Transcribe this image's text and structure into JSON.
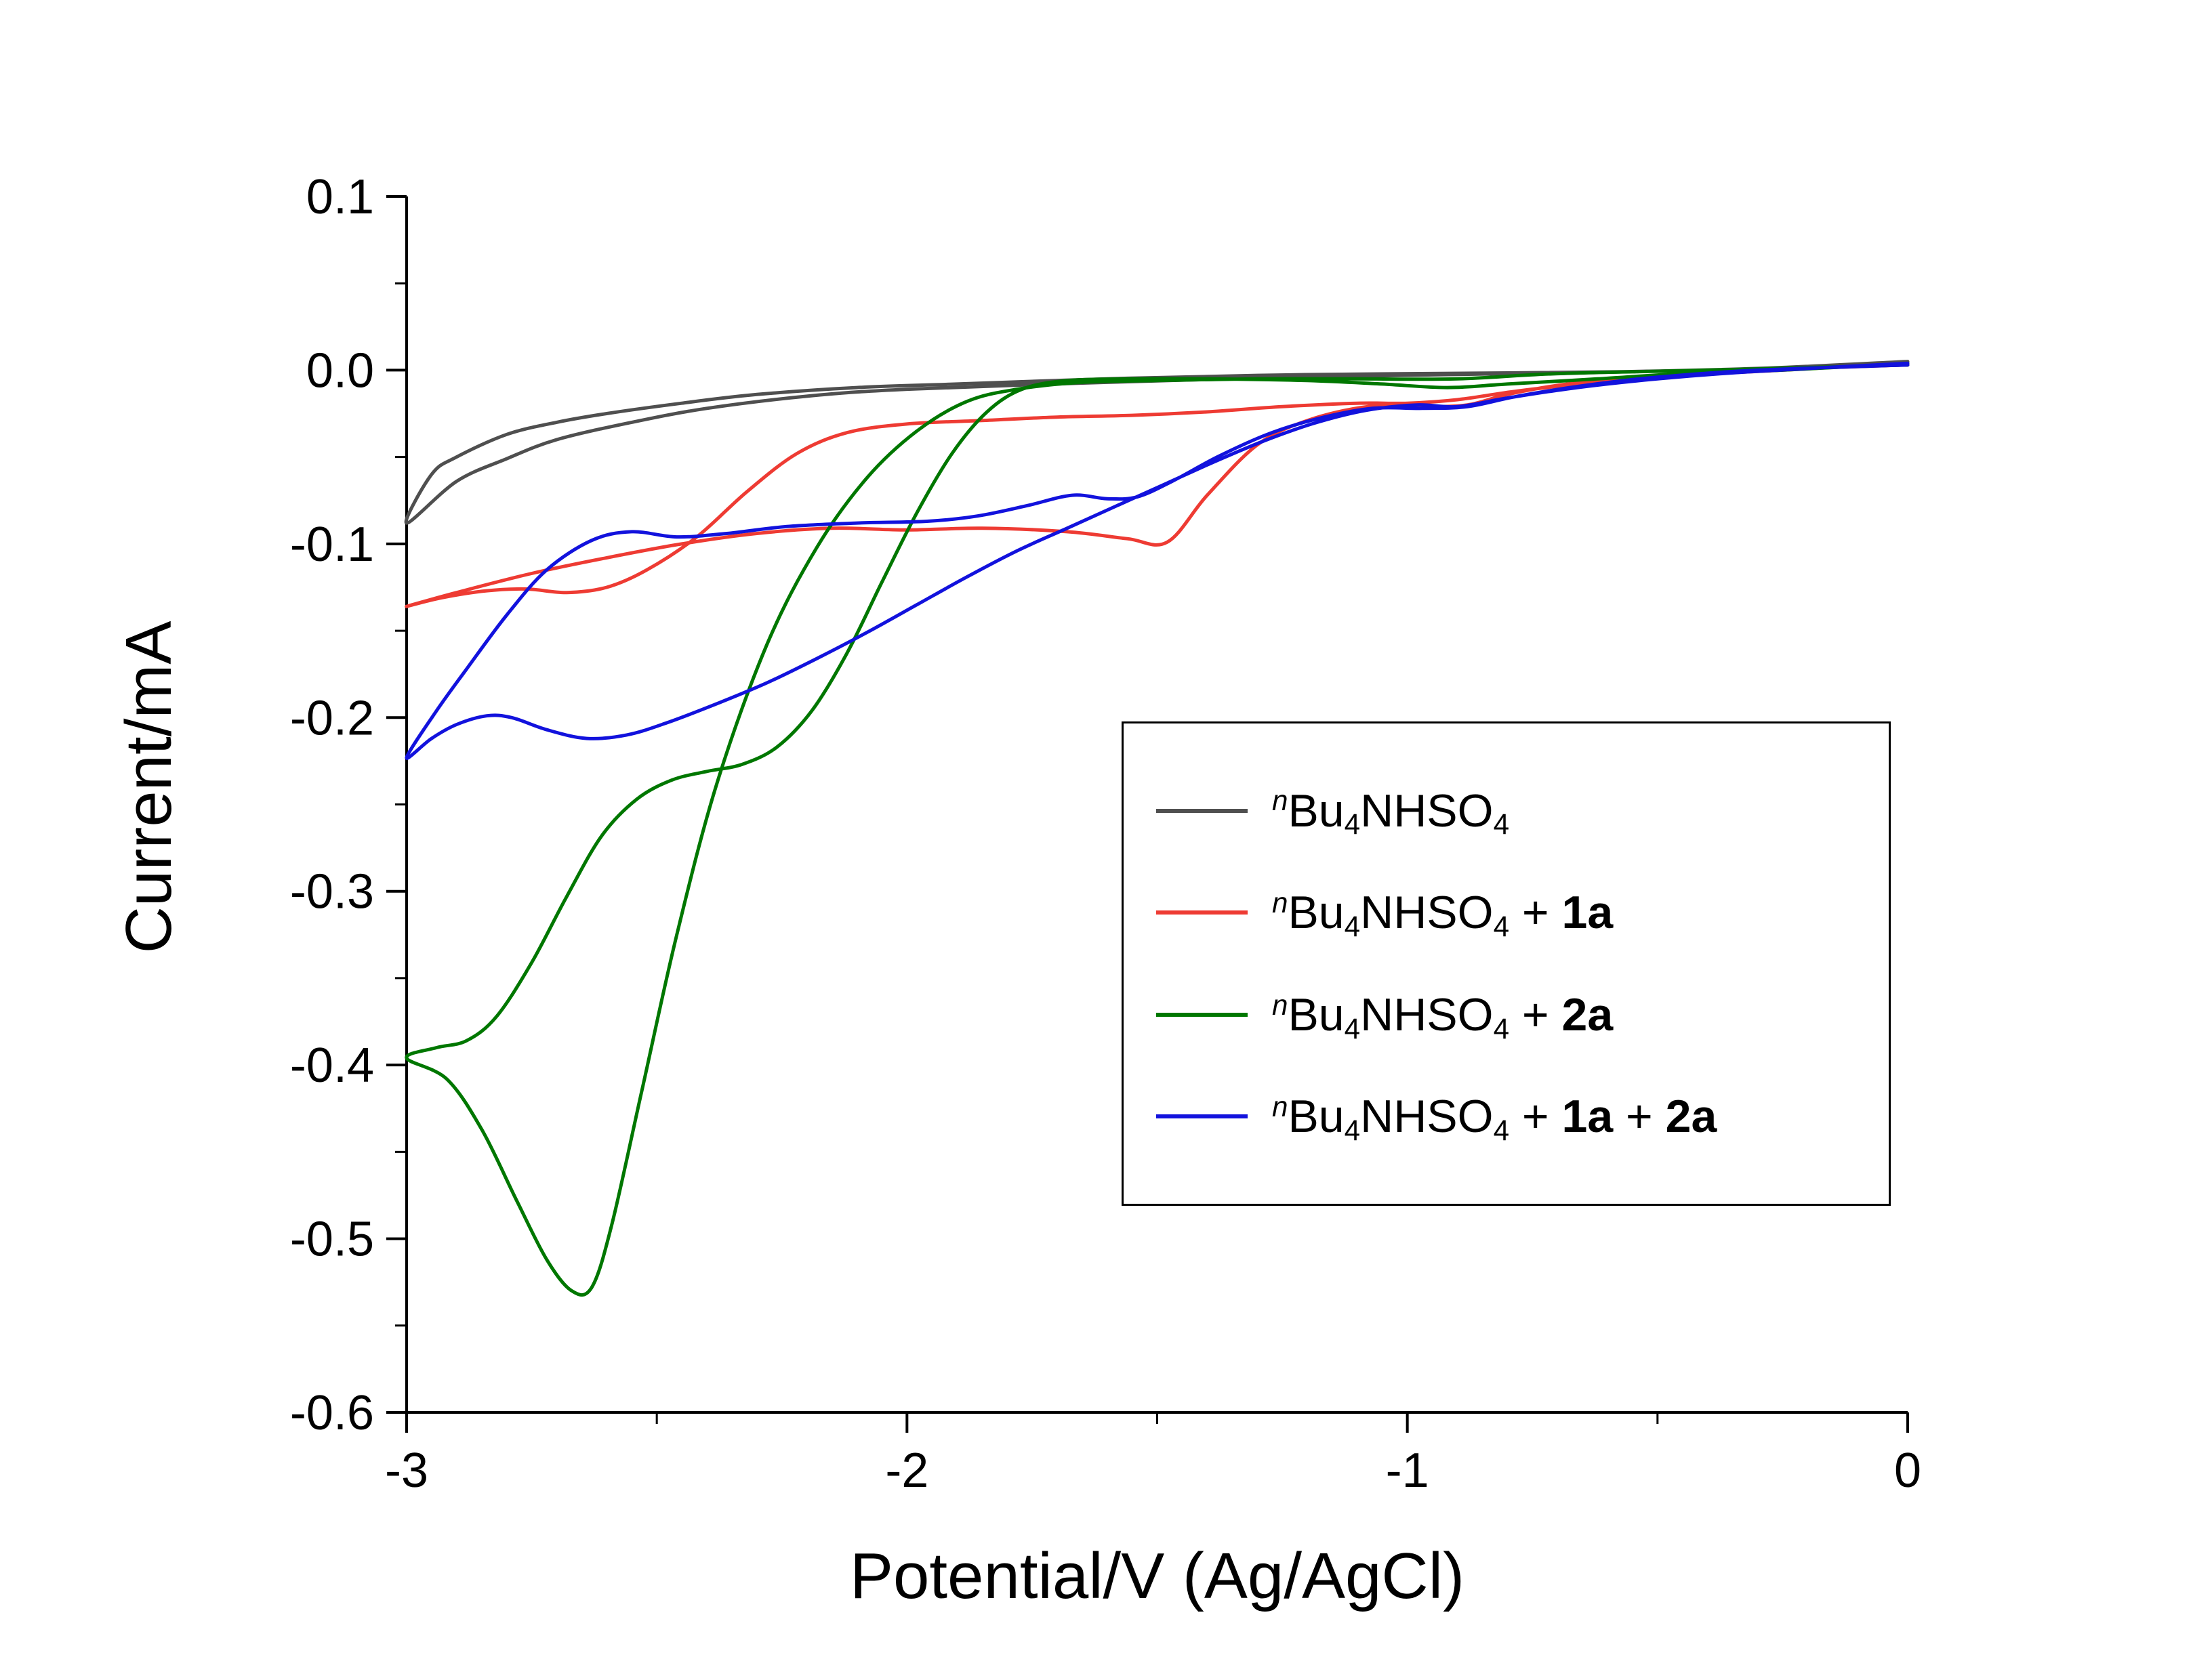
{
  "chart_data": {
    "type": "line",
    "title": "",
    "xlabel": "Potential/V (Ag/AgCl)",
    "ylabel": "Current/mA",
    "xlim": [
      -3,
      0
    ],
    "ylim": [
      -0.6,
      0.1
    ],
    "grid": false,
    "legend_position": "right-center",
    "x_major_ticks": [
      -3,
      -2,
      -1,
      0
    ],
    "x_tick_labels": [
      "-3",
      "-2",
      "-1",
      "0"
    ],
    "x_minor_ticks": [
      -2.5,
      -1.5,
      -0.5
    ],
    "y_major_ticks": [
      0.1,
      0.0,
      -0.1,
      -0.2,
      -0.3,
      -0.4,
      -0.5,
      -0.6
    ],
    "y_tick_labels": [
      "0.1",
      "0.0",
      "-0.1",
      "-0.2",
      "-0.3",
      "-0.4",
      "-0.5",
      "-0.6"
    ],
    "y_minor_ticks": [
      0.05,
      -0.05,
      -0.15,
      -0.25,
      -0.35,
      -0.45,
      -0.55
    ],
    "series": [
      {
        "id": "blank",
        "name": "nBu4NHSO4",
        "color": "#4f4f4f",
        "points": [
          [
            0,
            0.003
          ],
          [
            -0.4,
            0.0
          ],
          [
            -0.8,
            -0.002
          ],
          [
            -1.2,
            -0.004
          ],
          [
            -1.6,
            -0.007
          ],
          [
            -2.0,
            -0.011
          ],
          [
            -2.2,
            -0.015
          ],
          [
            -2.4,
            -0.022
          ],
          [
            -2.55,
            -0.03
          ],
          [
            -2.7,
            -0.04
          ],
          [
            -2.8,
            -0.051
          ],
          [
            -2.9,
            -0.064
          ],
          [
            -3.0,
            -0.088
          ],
          [
            -2.95,
            -0.06
          ],
          [
            -2.9,
            -0.05
          ],
          [
            -2.8,
            -0.037
          ],
          [
            -2.7,
            -0.03
          ],
          [
            -2.6,
            -0.025
          ],
          [
            -2.45,
            -0.019
          ],
          [
            -2.3,
            -0.014
          ],
          [
            -2.1,
            -0.01
          ],
          [
            -1.9,
            -0.008
          ],
          [
            -1.6,
            -0.005
          ],
          [
            -1.3,
            -0.003
          ],
          [
            -1.0,
            -0.002
          ],
          [
            -0.6,
            -0.001
          ],
          [
            -0.3,
            0.001
          ],
          [
            0,
            0.005
          ]
        ]
      },
      {
        "id": "1a",
        "name": "nBu4NHSO4 + 1a",
        "color": "#ee3b33",
        "points": [
          [
            0,
            0.003
          ],
          [
            -0.3,
            0.0
          ],
          [
            -0.5,
            -0.003
          ],
          [
            -0.68,
            -0.008
          ],
          [
            -0.8,
            -0.014
          ],
          [
            -0.88,
            -0.02
          ],
          [
            -0.97,
            -0.021
          ],
          [
            -1.08,
            -0.021
          ],
          [
            -1.2,
            -0.029
          ],
          [
            -1.3,
            -0.043
          ],
          [
            -1.4,
            -0.072
          ],
          [
            -1.48,
            -0.099
          ],
          [
            -1.56,
            -0.097
          ],
          [
            -1.68,
            -0.093
          ],
          [
            -1.85,
            -0.091
          ],
          [
            -2.0,
            -0.092
          ],
          [
            -2.15,
            -0.091
          ],
          [
            -2.3,
            -0.094
          ],
          [
            -2.45,
            -0.1
          ],
          [
            -2.6,
            -0.108
          ],
          [
            -2.75,
            -0.117
          ],
          [
            -2.9,
            -0.128
          ],
          [
            -3.0,
            -0.136
          ],
          [
            -2.93,
            -0.131
          ],
          [
            -2.84,
            -0.127
          ],
          [
            -2.76,
            -0.126
          ],
          [
            -2.68,
            -0.128
          ],
          [
            -2.6,
            -0.125
          ],
          [
            -2.52,
            -0.115
          ],
          [
            -2.42,
            -0.096
          ],
          [
            -2.32,
            -0.07
          ],
          [
            -2.22,
            -0.048
          ],
          [
            -2.12,
            -0.036
          ],
          [
            -2.0,
            -0.031
          ],
          [
            -1.85,
            -0.029
          ],
          [
            -1.7,
            -0.027
          ],
          [
            -1.55,
            -0.026
          ],
          [
            -1.4,
            -0.024
          ],
          [
            -1.25,
            -0.021
          ],
          [
            -1.1,
            -0.019
          ],
          [
            -1.0,
            -0.019
          ],
          [
            -0.9,
            -0.017
          ],
          [
            -0.78,
            -0.012
          ],
          [
            -0.62,
            -0.007
          ],
          [
            -0.45,
            -0.003
          ],
          [
            -0.25,
            0.0
          ],
          [
            0,
            0.004
          ]
        ]
      },
      {
        "id": "2a",
        "name": "nBu4NHSO4 + 2a",
        "color": "#007700",
        "points": [
          [
            0,
            0.003
          ],
          [
            -0.4,
            0.0
          ],
          [
            -0.7,
            -0.002
          ],
          [
            -0.9,
            -0.005
          ],
          [
            -1.1,
            -0.005
          ],
          [
            -1.3,
            -0.005
          ],
          [
            -1.5,
            -0.006
          ],
          [
            -1.65,
            -0.007
          ],
          [
            -1.78,
            -0.011
          ],
          [
            -1.88,
            -0.018
          ],
          [
            -1.98,
            -0.035
          ],
          [
            -2.08,
            -0.062
          ],
          [
            -2.18,
            -0.102
          ],
          [
            -2.28,
            -0.158
          ],
          [
            -2.38,
            -0.238
          ],
          [
            -2.46,
            -0.325
          ],
          [
            -2.53,
            -0.415
          ],
          [
            -2.59,
            -0.492
          ],
          [
            -2.63,
            -0.528
          ],
          [
            -2.67,
            -0.53
          ],
          [
            -2.72,
            -0.512
          ],
          [
            -2.78,
            -0.478
          ],
          [
            -2.85,
            -0.437
          ],
          [
            -2.92,
            -0.408
          ],
          [
            -3.0,
            -0.396
          ],
          [
            -2.94,
            -0.39
          ],
          [
            -2.88,
            -0.386
          ],
          [
            -2.82,
            -0.372
          ],
          [
            -2.75,
            -0.341
          ],
          [
            -2.68,
            -0.303
          ],
          [
            -2.61,
            -0.268
          ],
          [
            -2.54,
            -0.247
          ],
          [
            -2.47,
            -0.236
          ],
          [
            -2.4,
            -0.231
          ],
          [
            -2.33,
            -0.227
          ],
          [
            -2.26,
            -0.217
          ],
          [
            -2.19,
            -0.196
          ],
          [
            -2.12,
            -0.163
          ],
          [
            -2.05,
            -0.122
          ],
          [
            -1.98,
            -0.082
          ],
          [
            -1.91,
            -0.048
          ],
          [
            -1.84,
            -0.024
          ],
          [
            -1.77,
            -0.011
          ],
          [
            -1.68,
            -0.006
          ],
          [
            -1.55,
            -0.005
          ],
          [
            -1.4,
            -0.005
          ],
          [
            -1.2,
            -0.006
          ],
          [
            -1.05,
            -0.008
          ],
          [
            -0.92,
            -0.01
          ],
          [
            -0.8,
            -0.008
          ],
          [
            -0.62,
            -0.005
          ],
          [
            -0.45,
            -0.002
          ],
          [
            -0.25,
            0.0
          ],
          [
            0,
            0.004
          ]
        ]
      },
      {
        "id": "1a-2a",
        "name": "nBu4NHSO4 + 1a + 2a",
        "color": "#1212dd",
        "points": [
          [
            0,
            0.003
          ],
          [
            -0.3,
            0.0
          ],
          [
            -0.5,
            -0.004
          ],
          [
            -0.65,
            -0.009
          ],
          [
            -0.78,
            -0.015
          ],
          [
            -0.88,
            -0.021
          ],
          [
            -0.97,
            -0.022
          ],
          [
            -1.07,
            -0.022
          ],
          [
            -1.18,
            -0.028
          ],
          [
            -1.28,
            -0.037
          ],
          [
            -1.38,
            -0.05
          ],
          [
            -1.47,
            -0.064
          ],
          [
            -1.54,
            -0.073
          ],
          [
            -1.6,
            -0.074
          ],
          [
            -1.67,
            -0.072
          ],
          [
            -1.76,
            -0.078
          ],
          [
            -1.86,
            -0.084
          ],
          [
            -1.96,
            -0.087
          ],
          [
            -2.1,
            -0.088
          ],
          [
            -2.24,
            -0.09
          ],
          [
            -2.36,
            -0.094
          ],
          [
            -2.46,
            -0.096
          ],
          [
            -2.55,
            -0.093
          ],
          [
            -2.63,
            -0.098
          ],
          [
            -2.72,
            -0.115
          ],
          [
            -2.8,
            -0.141
          ],
          [
            -2.88,
            -0.172
          ],
          [
            -2.94,
            -0.196
          ],
          [
            -3.0,
            -0.223
          ],
          [
            -2.95,
            -0.212
          ],
          [
            -2.9,
            -0.204
          ],
          [
            -2.84,
            -0.199
          ],
          [
            -2.79,
            -0.2
          ],
          [
            -2.72,
            -0.207
          ],
          [
            -2.64,
            -0.212
          ],
          [
            -2.56,
            -0.21
          ],
          [
            -2.48,
            -0.203
          ],
          [
            -2.38,
            -0.192
          ],
          [
            -2.28,
            -0.18
          ],
          [
            -2.18,
            -0.166
          ],
          [
            -2.08,
            -0.151
          ],
          [
            -1.98,
            -0.135
          ],
          [
            -1.88,
            -0.119
          ],
          [
            -1.78,
            -0.104
          ],
          [
            -1.68,
            -0.091
          ],
          [
            -1.58,
            -0.078
          ],
          [
            -1.48,
            -0.065
          ],
          [
            -1.38,
            -0.052
          ],
          [
            -1.28,
            -0.04
          ],
          [
            -1.18,
            -0.03
          ],
          [
            -1.08,
            -0.023
          ],
          [
            -0.98,
            -0.02
          ],
          [
            -0.9,
            -0.021
          ],
          [
            -0.8,
            -0.016
          ],
          [
            -0.66,
            -0.01
          ],
          [
            -0.5,
            -0.005
          ],
          [
            -0.32,
            -0.001
          ],
          [
            0,
            0.004
          ]
        ]
      }
    ]
  },
  "legend": {
    "items": [
      {
        "series_id": "blank",
        "color": "#4f4f4f",
        "segments": [
          {
            "text": "n",
            "style": "sup-italic"
          },
          {
            "text": "Bu",
            "style": "normal"
          },
          {
            "text": "4",
            "style": "sub"
          },
          {
            "text": "NHSO",
            "style": "normal"
          },
          {
            "text": "4",
            "style": "sub"
          }
        ]
      },
      {
        "series_id": "1a",
        "color": "#ee3b33",
        "segments": [
          {
            "text": "n",
            "style": "sup-italic"
          },
          {
            "text": "Bu",
            "style": "normal"
          },
          {
            "text": "4",
            "style": "sub"
          },
          {
            "text": "NHSO",
            "style": "normal"
          },
          {
            "text": "4",
            "style": "sub"
          },
          {
            "text": " + ",
            "style": "normal"
          },
          {
            "text": "1a",
            "style": "bold"
          }
        ]
      },
      {
        "series_id": "2a",
        "color": "#007700",
        "segments": [
          {
            "text": "n",
            "style": "sup-italic"
          },
          {
            "text": "Bu",
            "style": "normal"
          },
          {
            "text": "4",
            "style": "sub"
          },
          {
            "text": "NHSO",
            "style": "normal"
          },
          {
            "text": "4",
            "style": "sub"
          },
          {
            "text": " + ",
            "style": "normal"
          },
          {
            "text": "2a",
            "style": "bold"
          }
        ]
      },
      {
        "series_id": "1a-2a",
        "color": "#1212dd",
        "segments": [
          {
            "text": "n",
            "style": "sup-italic"
          },
          {
            "text": "Bu",
            "style": "normal"
          },
          {
            "text": "4",
            "style": "sub"
          },
          {
            "text": "NHSO",
            "style": "normal"
          },
          {
            "text": "4",
            "style": "sub"
          },
          {
            "text": " + ",
            "style": "normal"
          },
          {
            "text": "1a",
            "style": "bold"
          },
          {
            "text": " + ",
            "style": "normal"
          },
          {
            "text": "2a",
            "style": "bold"
          }
        ]
      }
    ]
  }
}
